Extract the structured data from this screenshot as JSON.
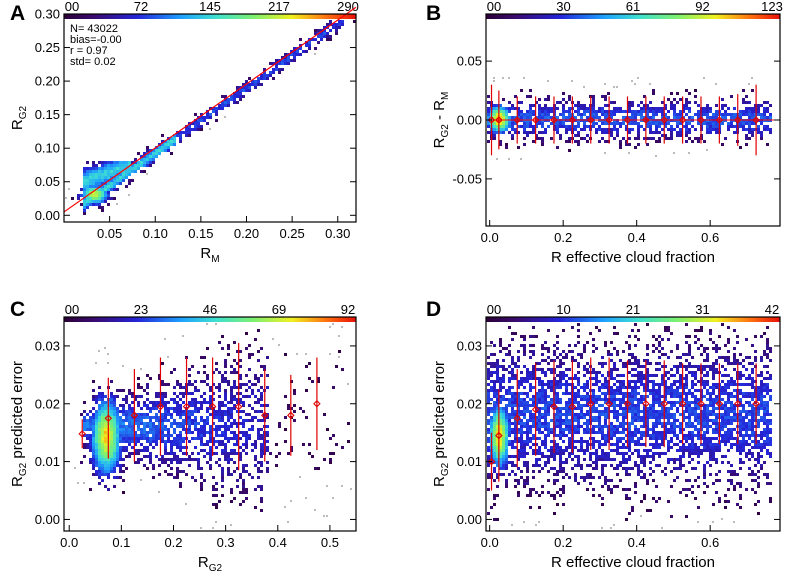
{
  "chart_data": [
    {
      "id": "A",
      "type": "heatmap",
      "panel_label": "A",
      "xlim": [
        0.0,
        0.32
      ],
      "ylim": [
        -0.01,
        0.3
      ],
      "xticks": [
        0.05,
        0.1,
        0.15,
        0.2,
        0.25,
        0.3
      ],
      "xtick_labels": [
        "0.05",
        "0.10",
        "0.15",
        "0.20",
        "0.25",
        "0.30"
      ],
      "yticks": [
        0.0,
        0.05,
        0.1,
        0.15,
        0.2,
        0.25,
        0.3
      ],
      "ytick_labels": [
        "0.00",
        "0.05",
        "0.10",
        "0.15",
        "0.20",
        "0.25",
        "0.30"
      ],
      "xlabel": "R",
      "xlabel_sub": "M",
      "ylabel": "R",
      "ylabel_sub": "G2",
      "ylabel_rest": "",
      "colorbar_ticks": [
        "00",
        "72",
        "145",
        "217",
        "290"
      ],
      "stats": [
        "N=   43022",
        "bias=-0.00",
        "r = 0.97",
        "std= 0.02"
      ],
      "fit_line": {
        "x": [
          0.0,
          0.32
        ],
        "y": [
          0.005,
          0.31
        ]
      },
      "density": "diagonal"
    },
    {
      "id": "B",
      "type": "heatmap",
      "panel_label": "B",
      "xlim": [
        -0.01,
        0.79
      ],
      "ylim": [
        -0.09,
        0.09
      ],
      "xticks": [
        0.0,
        0.2,
        0.4,
        0.6
      ],
      "xtick_labels": [
        "0.0",
        "0.2",
        "0.4",
        "0.6"
      ],
      "yticks": [
        -0.05,
        0.0,
        0.05
      ],
      "ytick_labels": [
        "-0.05",
        "0.00",
        "0.05"
      ],
      "xlabel": "R effective cloud fraction",
      "xlabel_sub": "",
      "ylabel": "R",
      "ylabel_sub": "G2",
      "ylabel_rest": " - R",
      "ylabel_rest_sub": "M",
      "colorbar_ticks": [
        "00",
        "30",
        "61",
        "92",
        "123"
      ],
      "ref_line_y": 0.0,
      "binned": {
        "x": [
          0.005,
          0.025,
          0.075,
          0.125,
          0.175,
          0.225,
          0.275,
          0.325,
          0.375,
          0.425,
          0.475,
          0.525,
          0.575,
          0.625,
          0.675,
          0.725
        ],
        "mean": [
          0.0,
          0.0,
          0.0,
          0.0,
          0.0,
          0.0,
          0.0,
          0.0,
          0.0,
          0.0,
          0.0,
          0.0,
          0.0,
          0.0,
          0.0,
          0.0
        ],
        "err": [
          0.03,
          0.025,
          0.02,
          0.02,
          0.02,
          0.02,
          0.02,
          0.02,
          0.02,
          0.02,
          0.02,
          0.02,
          0.02,
          0.02,
          0.022,
          0.03
        ]
      },
      "density": "band"
    },
    {
      "id": "C",
      "type": "heatmap",
      "panel_label": "C",
      "xlim": [
        -0.01,
        0.55
      ],
      "ylim": [
        -0.002,
        0.035
      ],
      "xticks": [
        0.0,
        0.1,
        0.2,
        0.3,
        0.4,
        0.5
      ],
      "xtick_labels": [
        "0.0",
        "0.1",
        "0.2",
        "0.3",
        "0.4",
        "0.5"
      ],
      "yticks": [
        0.0,
        0.01,
        0.02,
        0.03
      ],
      "ytick_labels": [
        "0.00",
        "0.01",
        "0.02",
        "0.03"
      ],
      "xlabel": "R",
      "xlabel_sub": "G2",
      "ylabel": "R",
      "ylabel_sub": "G2",
      "ylabel_rest": " predicted error",
      "colorbar_ticks": [
        "00",
        "23",
        "46",
        "69",
        "92"
      ],
      "binned": {
        "x": [
          0.025,
          0.075,
          0.125,
          0.175,
          0.225,
          0.275,
          0.325,
          0.375,
          0.425,
          0.475
        ],
        "mean": [
          0.0148,
          0.0175,
          0.018,
          0.0195,
          0.0195,
          0.0195,
          0.0195,
          0.018,
          0.018,
          0.02
        ],
        "err": [
          0.0025,
          0.007,
          0.008,
          0.0085,
          0.0085,
          0.0085,
          0.011,
          0.008,
          0.007,
          0.008
        ]
      },
      "density": "cone"
    },
    {
      "id": "D",
      "type": "heatmap",
      "panel_label": "D",
      "xlim": [
        -0.01,
        0.79
      ],
      "ylim": [
        -0.002,
        0.035
      ],
      "xticks": [
        0.0,
        0.2,
        0.4,
        0.6
      ],
      "xtick_labels": [
        "0.0",
        "0.2",
        "0.4",
        "0.6"
      ],
      "yticks": [
        0.0,
        0.01,
        0.02,
        0.03
      ],
      "ytick_labels": [
        "0.00",
        "0.01",
        "0.02",
        "0.03"
      ],
      "xlabel": "R effective cloud fraction",
      "xlabel_sub": "",
      "ylabel": "R",
      "ylabel_sub": "G2",
      "ylabel_rest": " predicted error",
      "colorbar_ticks": [
        "00",
        "10",
        "21",
        "31",
        "42"
      ],
      "binned": {
        "x": [
          0.005,
          0.025,
          0.075,
          0.125,
          0.175,
          0.225,
          0.275,
          0.325,
          0.375,
          0.425,
          0.475,
          0.525,
          0.575,
          0.625,
          0.675,
          0.725
        ],
        "mean": [
          0.01,
          0.0145,
          0.0175,
          0.019,
          0.0195,
          0.0195,
          0.02,
          0.02,
          0.02,
          0.02,
          0.02,
          0.02,
          0.02,
          0.02,
          0.02,
          0.02
        ],
        "err": [
          0.005,
          0.008,
          0.0085,
          0.008,
          0.008,
          0.008,
          0.008,
          0.008,
          0.0075,
          0.0075,
          0.0075,
          0.007,
          0.007,
          0.007,
          0.007,
          0.007
        ]
      },
      "density": "uniform"
    }
  ]
}
